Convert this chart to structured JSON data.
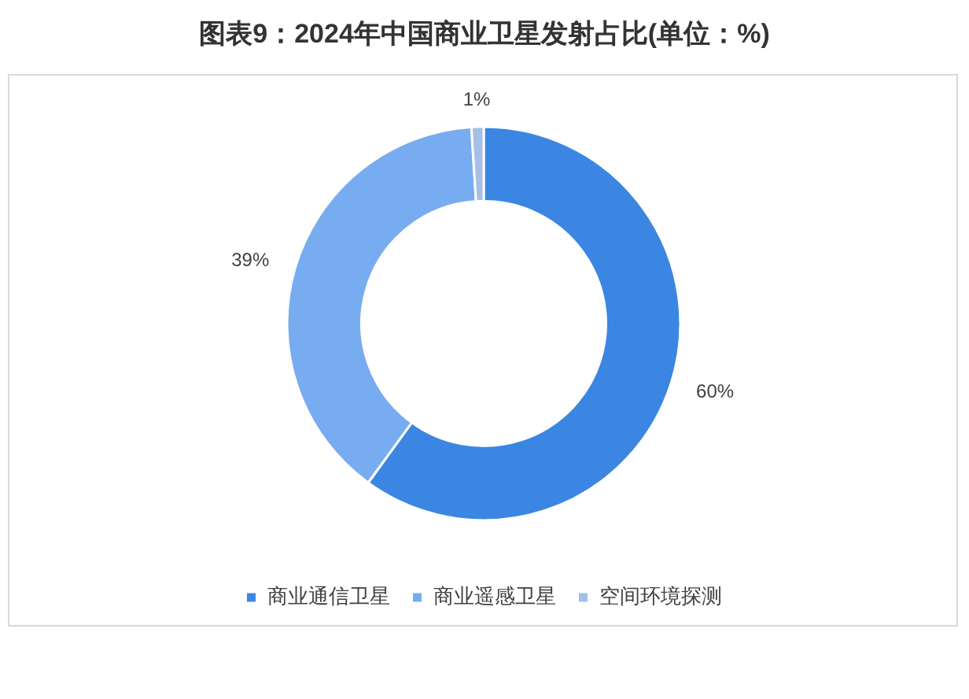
{
  "chart_data": {
    "type": "donut",
    "title": "图表9：2024年中国商业卫星发射占比(单位：%)",
    "categories": [
      "商业通信卫星",
      "商业遥感卫星",
      "空间环境探测"
    ],
    "values": [
      60,
      39,
      1
    ],
    "colors": [
      "#3b86e2",
      "#78acf0",
      "#a5bfe6"
    ],
    "value_labels": [
      "60%",
      "39%",
      "1%"
    ],
    "legend": "bottom"
  }
}
